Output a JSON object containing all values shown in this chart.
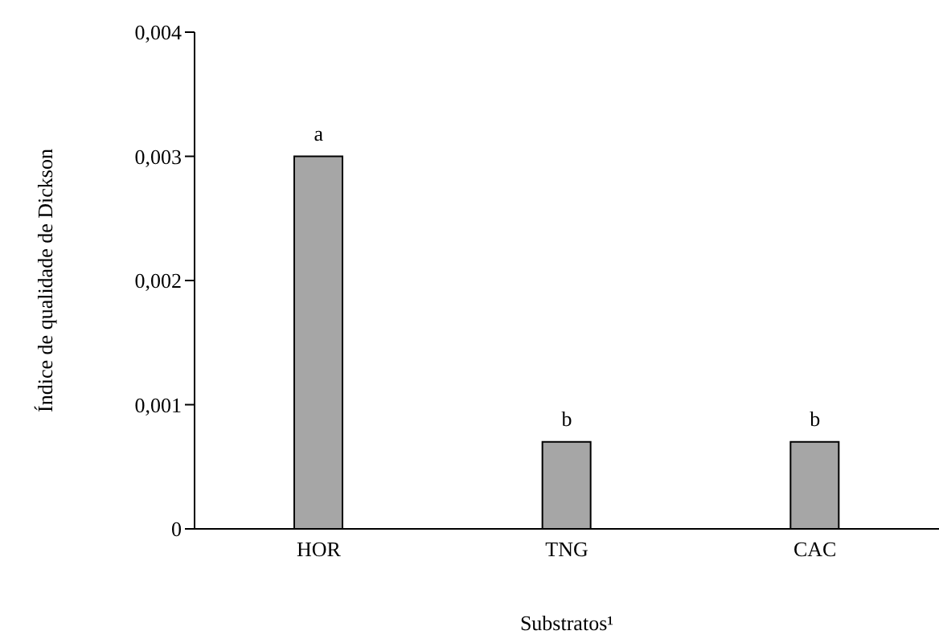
{
  "chart_data": {
    "type": "bar",
    "xlabel": "Substratos¹",
    "ylabel": "Índice de qualidade de Dickson",
    "categories": [
      "HOR",
      "TNG",
      "CAC"
    ],
    "values": [
      0.003,
      0.0007,
      0.0007
    ],
    "color": "#a6a6a6",
    "ylim": [
      0,
      0.004
    ],
    "yticks": [
      0,
      {
        "value": 0.001,
        "label": "0,001"
      },
      {
        "value": 0.002,
        "label": "0,002"
      },
      {
        "value": 0.003,
        "label": "0,003"
      },
      {
        "value": 0.004,
        "label": "0,004"
      }
    ],
    "annotations": [
      {
        "text": "a",
        "x": "HOR",
        "y": 0.003
      },
      {
        "text": "b",
        "x": "TNG",
        "y": 0.0007
      },
      {
        "text": "b",
        "x": "CAC",
        "y": 0.0007
      }
    ],
    "grid": false,
    "legend": false
  }
}
